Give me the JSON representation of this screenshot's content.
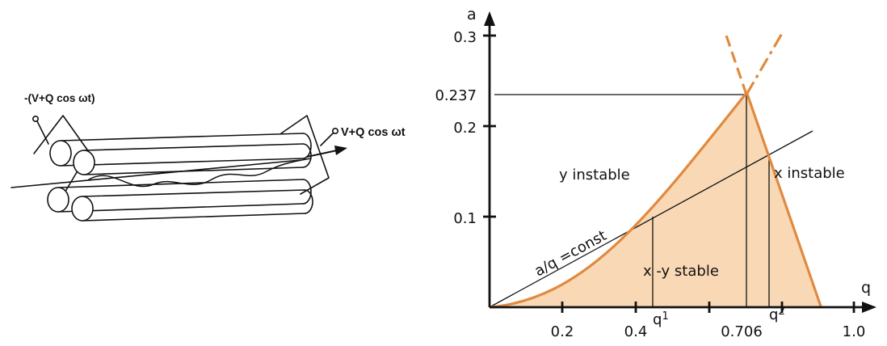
{
  "quadrupole": {
    "label_left": "-(V+Q cos ωt)",
    "label_right": "V+Q cos ωt"
  },
  "stability": {
    "axis_y_label": "a",
    "axis_x_label": "q",
    "y_ticks": [
      "0.3",
      "0.237",
      "0.2",
      "0.1"
    ],
    "x_ticks": [
      "0.2",
      "0.4",
      "0.706",
      "1.0"
    ],
    "q1": "q",
    "q1_sub": "1",
    "q2": "q",
    "q2_sub": "2",
    "region_y_instable": "y instable",
    "region_x_instable": "x instable",
    "region_stable": "x -y stable",
    "line_label": "a/q =const",
    "apex": {
      "q": 0.706,
      "a": 0.237
    },
    "fill_color": "#f9d9b5",
    "boundary_color": "#e08a40"
  }
}
